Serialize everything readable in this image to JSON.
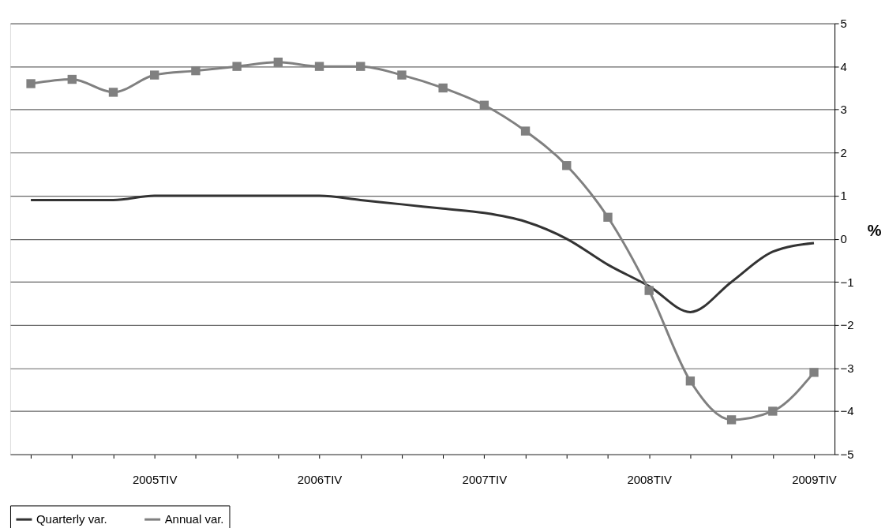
{
  "chart_data": {
    "type": "line",
    "ylabel": "%",
    "categories": [
      null,
      null,
      null,
      "2005TIV",
      null,
      null,
      null,
      "2006TIV",
      null,
      null,
      null,
      "2007TIV",
      null,
      null,
      null,
      "2008TIV",
      null,
      null,
      null,
      "2009TIV"
    ],
    "series": [
      {
        "name": "Quarterly var.",
        "color": "#333333",
        "marker": "none",
        "values": [
          0.9,
          0.9,
          0.9,
          1.0,
          1.0,
          1.0,
          1.0,
          1.0,
          0.9,
          0.8,
          0.7,
          0.6,
          0.4,
          0.0,
          -0.6,
          -1.1,
          -1.7,
          -1.0,
          -0.3,
          -0.1
        ]
      },
      {
        "name": "Annual var.",
        "color": "#808080",
        "marker": "square",
        "values": [
          3.6,
          3.7,
          3.4,
          3.8,
          3.9,
          4.0,
          4.1,
          4.0,
          4.0,
          3.8,
          3.5,
          3.1,
          2.5,
          1.7,
          0.5,
          -1.2,
          -3.3,
          -4.2,
          -4.0,
          -3.1
        ]
      }
    ],
    "ylim": [
      -5,
      5
    ],
    "yticks": [
      -5,
      -4,
      -3,
      -2,
      -1,
      0,
      1,
      2,
      3,
      4,
      5
    ],
    "grid": "y",
    "legend": "bottom",
    "line_style": "solid"
  }
}
